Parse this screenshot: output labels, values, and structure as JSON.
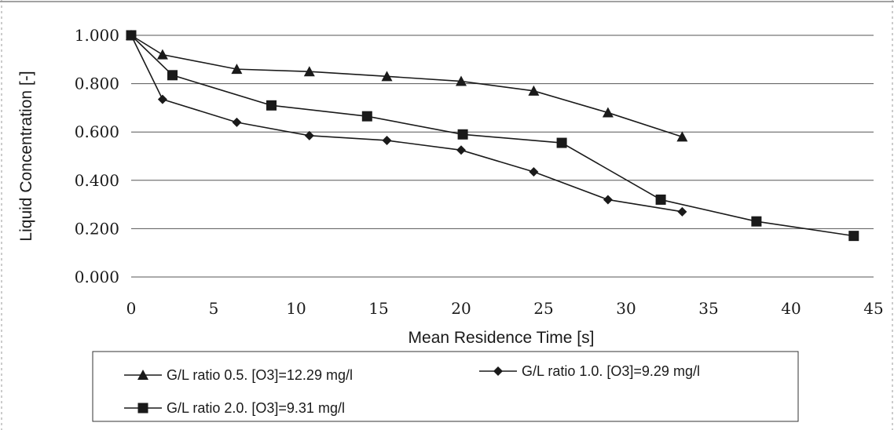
{
  "chart_data": {
    "type": "line",
    "xlabel": "Mean Residence Time [s]",
    "ylabel": "Liquid Concentration [-]",
    "xlim": [
      0,
      45
    ],
    "ylim": [
      0,
      1.0
    ],
    "x_ticks": [
      "0",
      "5",
      "10",
      "15",
      "20",
      "25",
      "30",
      "35",
      "40",
      "45"
    ],
    "y_ticks": [
      "0.000",
      "0.200",
      "0.400",
      "0.600",
      "0.800",
      "1.000"
    ],
    "grid": "horizontal",
    "legend_position": "bottom",
    "series": [
      {
        "name": "G/L ratio 0.5. [O3]=12.29 mg/l",
        "marker": "triangle",
        "x": [
          0,
          1.9,
          6.4,
          10.8,
          15.5,
          20.0,
          24.4,
          28.9,
          33.4
        ],
        "y": [
          1.0,
          0.92,
          0.86,
          0.85,
          0.83,
          0.81,
          0.77,
          0.68,
          0.58
        ]
      },
      {
        "name": "G/L ratio 1.0. [O3]=9.29 mg/l",
        "marker": "diamond",
        "x": [
          0,
          1.9,
          6.4,
          10.8,
          15.5,
          20.0,
          24.4,
          28.9,
          33.4
        ],
        "y": [
          1.0,
          0.735,
          0.64,
          0.585,
          0.565,
          0.525,
          0.435,
          0.32,
          0.27
        ]
      },
      {
        "name": "G/L ratio 2.0. [O3]=9.31 mg/l",
        "marker": "square",
        "x": [
          0,
          2.5,
          8.5,
          14.3,
          20.1,
          26.1,
          32.1,
          37.9,
          43.8
        ],
        "y": [
          1.0,
          0.835,
          0.71,
          0.665,
          0.59,
          0.555,
          0.32,
          0.23,
          0.17
        ]
      }
    ]
  }
}
